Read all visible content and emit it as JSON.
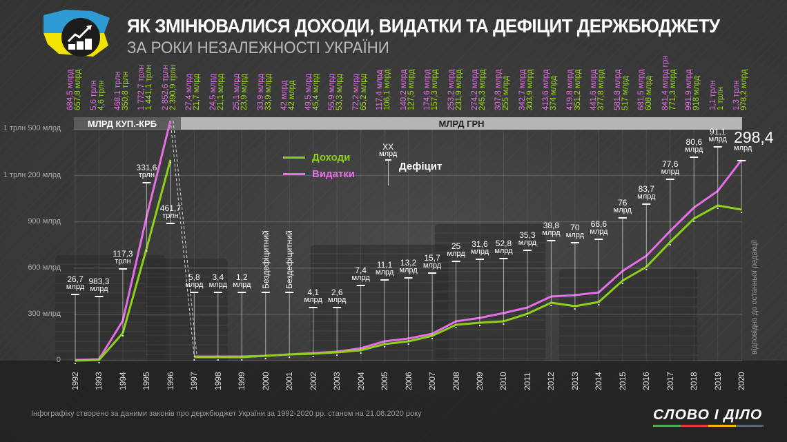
{
  "header": {
    "title": "ЯК ЗМІНЮВАЛИСЯ ДОХОДИ, ВИДАТКИ ТА ДЕФІЦИТ ДЕРЖБЮДЖЕТУ",
    "subtitle": "ЗА РОКИ НЕЗАЛЕЖНОСТІ УКРАЇНИ",
    "logo_icon": "growth-chart-coins-icon"
  },
  "era_bars": {
    "kup": "МЛРД КУП.-КРБ",
    "grn": "МЛРД ГРН"
  },
  "legend": {
    "income": "Доходи",
    "expenses": "Видатки",
    "deficit_example_value": "XX",
    "deficit_example_unit": "млрд",
    "deficit": "Дефіцит"
  },
  "colors": {
    "income": "#8fd11a",
    "expenses": "#e46fe6",
    "background": "#3a3a3a",
    "grn_bar": "#b5b5b5",
    "kup_bar": "#5a5a5a"
  },
  "top_labels": [
    {
      "exp": "684,5 млрд",
      "inc": "657,8 млрд"
    },
    {
      "exp": "5,6 трлн",
      "inc": "4,6 трлн"
    },
    {
      "exp": "468,1 трлн",
      "inc": "350,8 трлн"
    },
    {
      "exp": "1 772,7 трлн",
      "inc": "1 441,1 трлн"
    },
    {
      "exp": "2 852,6 трлн",
      "inc": "2 390,9 трлн"
    },
    {
      "exp": "27,4 млрд",
      "inc": "21,7 млрд"
    },
    {
      "exp": "24,5 млрд",
      "inc": "21,1 млрд"
    },
    {
      "exp": "25,1 млрд",
      "inc": "23,9 млрд"
    },
    {
      "exp": "33,9 млрд",
      "inc": "33,9 млрд"
    },
    {
      "exp": "42 млрд",
      "inc": "42 млрд"
    },
    {
      "exp": "49,5 млрд",
      "inc": "45,4 млрд"
    },
    {
      "exp": "55,9 млрд",
      "inc": "53,3 млрд"
    },
    {
      "exp": "72,2 млрд",
      "inc": "65,2 млрд"
    },
    {
      "exp": "117,4 млрд",
      "inc": "106,1 млрд"
    },
    {
      "exp": "140,2 млрд",
      "inc": "127,5 млрд"
    },
    {
      "exp": "174,6 млрд",
      "inc": "157,3 млрд"
    },
    {
      "exp": "253,2 млрд",
      "inc": "231,9 млрд"
    },
    {
      "exp": "274,2 млрд",
      "inc": "245,3 млрд"
    },
    {
      "exp": "307,8 млрд",
      "inc": "255 млрд"
    },
    {
      "exp": "342,7 млрд",
      "inc": "303,9 млрд"
    },
    {
      "exp": "413,6 млрд",
      "inc": "374 млрд"
    },
    {
      "exp": "419,8 млрд",
      "inc": "351,2 млрд"
    },
    {
      "exp": "441,6 млрд",
      "inc": "377,8 млрд"
    },
    {
      "exp": "581,8 млрд",
      "inc": "517 млрд"
    },
    {
      "exp": "681,5 млрд",
      "inc": "608 млрд"
    },
    {
      "exp": "841,4 млрд грн",
      "inc": "771,3 млрд"
    },
    {
      "exp": "991,9 млрд",
      "inc": "918 млрд"
    },
    {
      "exp": "1,1 трлн",
      "inc": "1 трлн"
    },
    {
      "exp": "1,3 трлн",
      "inc": "978,2 млрд"
    }
  ],
  "deficit_labels": [
    {
      "year": "1992",
      "value": "26,7",
      "unit": "млрд"
    },
    {
      "year": "1993",
      "value": "983,3",
      "unit": "млрд"
    },
    {
      "year": "1994",
      "value": "117,3",
      "unit": "трлн"
    },
    {
      "year": "1995",
      "value": "331,6",
      "unit": "трлн"
    },
    {
      "year": "1996",
      "value": "461,7",
      "unit": "трлн"
    },
    {
      "year": "1997",
      "value": "5,8",
      "unit": "млрд"
    },
    {
      "year": "1998",
      "value": "3,4",
      "unit": "млрд"
    },
    {
      "year": "1999",
      "value": "1,2",
      "unit": "млрд"
    },
    {
      "year": "2000",
      "value": "Бездефіцитний",
      "unit": ""
    },
    {
      "year": "2001",
      "value": "Бездефіцитний",
      "unit": ""
    },
    {
      "year": "2002",
      "value": "4,1",
      "unit": "млрд"
    },
    {
      "year": "2003",
      "value": "2,6",
      "unit": "млрд"
    },
    {
      "year": "2004",
      "value": "7,4",
      "unit": "млрд"
    },
    {
      "year": "2005",
      "value": "11,1",
      "unit": "млрд"
    },
    {
      "year": "2006",
      "value": "13,2",
      "unit": "млрд"
    },
    {
      "year": "2007",
      "value": "15,7",
      "unit": "млрд"
    },
    {
      "year": "2008",
      "value": "25",
      "unit": "млрд"
    },
    {
      "year": "2009",
      "value": "31,6",
      "unit": "млрд"
    },
    {
      "year": "2010",
      "value": "52,8",
      "unit": "млрд"
    },
    {
      "year": "2011",
      "value": "35,3",
      "unit": "млрд"
    },
    {
      "year": "2012",
      "value": "38,8",
      "unit": "млрд"
    },
    {
      "year": "2013",
      "value": "70",
      "unit": "млрд"
    },
    {
      "year": "2014",
      "value": "68,6",
      "unit": "млрд"
    },
    {
      "year": "2015",
      "value": "76",
      "unit": "млрд"
    },
    {
      "year": "2016",
      "value": "83,7",
      "unit": "млрд"
    },
    {
      "year": "2017",
      "value": "77,6",
      "unit": "млрд"
    },
    {
      "year": "2018",
      "value": "80,6",
      "unit": "млрд"
    },
    {
      "year": "2019",
      "value": "91,1",
      "unit": "млрд"
    },
    {
      "year": "2020",
      "value": "298,4",
      "unit": "млрд"
    }
  ],
  "y_ticks": [
    "0",
    "300 млрд",
    "600 млрд",
    "900 млрд",
    "1 трлн 200 млрд",
    "1 трлн 500 млрд"
  ],
  "side_note": "відповідно до останньої редакції",
  "footer": "Інфографіку створено за даними законів про держбюджет України за 1992-2020 рр. станом на 21.08.2020 року",
  "brand": "СЛОВО І ДІЛО",
  "chart_data": {
    "type": "line",
    "title": "Як змінювалися доходи, видатки та дефіцит держбюджету за роки незалежності України",
    "xlabel": "",
    "ylabel": "",
    "ylim": [
      0,
      1500
    ],
    "y_unit": "млрд (1992-1996 — млрд куп.-крб, 1997-2020 — млрд грн)",
    "grid": true,
    "legend_position": "inside-top-left",
    "x": [
      "1992",
      "1993",
      "1994",
      "1995",
      "1996",
      "1997",
      "1998",
      "1999",
      "2000",
      "2001",
      "2002",
      "2003",
      "2004",
      "2005",
      "2006",
      "2007",
      "2008",
      "2009",
      "2010",
      "2011",
      "2012",
      "2013",
      "2014",
      "2015",
      "2016",
      "2017",
      "2018",
      "2019",
      "2020"
    ],
    "series": [
      {
        "name": "Доходи",
        "color": "#8fd11a",
        "values": [
          657.8,
          4600,
          350800,
          1441100,
          2390900,
          21.7,
          21.1,
          23.9,
          33.9,
          42,
          45.4,
          53.3,
          65.2,
          106.1,
          127.5,
          157.3,
          231.9,
          245.3,
          255,
          303.9,
          374,
          351.2,
          377.8,
          517,
          608,
          771.3,
          918,
          1000,
          978.2
        ]
      },
      {
        "name": "Видатки",
        "color": "#e46fe6",
        "values": [
          684.5,
          5600,
          468100,
          1772700,
          2852600,
          27.4,
          24.5,
          25.1,
          33.9,
          42,
          49.5,
          55.9,
          72.2,
          117.4,
          140.2,
          174.6,
          253.2,
          274.2,
          307.8,
          342.7,
          413.6,
          419.8,
          441.6,
          581.8,
          681.5,
          841.4,
          991.9,
          1100,
          1300
        ]
      },
      {
        "name": "Дефіцит",
        "values": [
          26.7,
          983.3,
          117300,
          331600,
          461700,
          5.8,
          3.4,
          1.2,
          0,
          0,
          4.1,
          2.6,
          7.4,
          11.1,
          13.2,
          15.7,
          25,
          31.6,
          52.8,
          35.3,
          38.8,
          70,
          68.6,
          76,
          83.7,
          77.6,
          80.6,
          91.1,
          298.4
        ]
      }
    ],
    "plotted_scaled_values_note": "1992-1996 plotted on compressed scale in same axis",
    "plotted_pixel_values": {
      "income_y": [
        523,
        522,
        483,
        360,
        232,
        518,
        518,
        518,
        516,
        514,
        513,
        511,
        508,
        499,
        495,
        487,
        471,
        468,
        466,
        455,
        439,
        444,
        438,
        407,
        387,
        351,
        317,
        298,
        304
      ],
      "expenses_y": [
        522,
        521,
        465,
        314,
        175,
        517,
        517,
        517,
        516,
        514,
        512,
        510,
        505,
        495,
        491,
        484,
        466,
        461,
        454,
        446,
        430,
        428,
        424,
        393,
        371,
        335,
        301,
        277,
        232
      ]
    }
  }
}
